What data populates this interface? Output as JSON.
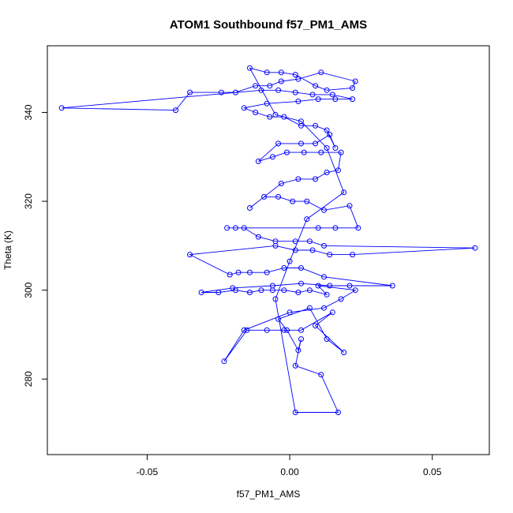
{
  "chart_data": {
    "type": "line",
    "title": "ATOM1 Southbound f57_PM1_AMS",
    "xlabel": "f57_PM1_AMS",
    "ylabel": "Theta (K)",
    "xlim": [
      -0.085,
      0.07
    ],
    "ylim": [
      263,
      355
    ],
    "xticks": [
      -0.05,
      0.0,
      0.05
    ],
    "xtick_labels": [
      "-0.05",
      "0.00",
      "0.05"
    ],
    "yticks": [
      280,
      300,
      320,
      340
    ],
    "ytick_labels": [
      "280",
      "300",
      "320",
      "340"
    ],
    "grid": false,
    "line_color": "#0000ff",
    "marker": "open-circle",
    "series": [
      {
        "name": "f57_PM1_AMS",
        "x": [
          0.002,
          0.017,
          0.011,
          0.002,
          0.004,
          0.003,
          -0.001,
          -0.004,
          0.007,
          0.013,
          0.019,
          0.009,
          0.015,
          0.004,
          -0.002,
          -0.008,
          -0.015,
          -0.023,
          -0.016,
          0.0,
          0.012,
          0.018,
          0.023,
          0.01,
          0.013,
          0.007,
          0.003,
          -0.002,
          -0.006,
          -0.01,
          -0.014,
          -0.019,
          -0.025,
          -0.031,
          -0.02,
          -0.006,
          0.004,
          0.014,
          0.021,
          0.036,
          0.012,
          0.004,
          -0.002,
          -0.008,
          -0.014,
          -0.018,
          -0.021,
          -0.035,
          -0.005,
          0.002,
          0.008,
          0.014,
          0.022,
          0.065,
          0.012,
          0.007,
          0.002,
          -0.005,
          -0.011,
          -0.016,
          -0.019,
          -0.022,
          0.01,
          0.016,
          0.024,
          0.021,
          0.012,
          0.006,
          0.001,
          -0.004,
          -0.009,
          -0.014,
          -0.003,
          0.003,
          0.009,
          0.013,
          0.017,
          0.018,
          0.011,
          0.005,
          -0.001,
          -0.006,
          -0.011,
          -0.004,
          0.004,
          0.009,
          0.014,
          0.016,
          0.013,
          0.009,
          0.004,
          -0.002,
          -0.007,
          -0.012,
          -0.016,
          -0.008,
          0.003,
          0.01,
          0.016,
          0.022,
          0.015,
          0.008,
          0.002,
          -0.004,
          -0.01,
          -0.08,
          -0.04,
          -0.035,
          -0.024,
          -0.019,
          -0.012,
          -0.007,
          -0.003,
          0.003,
          0.011,
          0.023,
          0.022,
          0.013,
          0.009,
          0.002,
          -0.003,
          -0.008,
          -0.014,
          -0.005,
          0.004,
          0.013,
          0.019,
          0.006,
          0.0,
          -0.005
        ],
        "y": [
          272.5,
          272.5,
          281.0,
          283.0,
          289.0,
          286.5,
          291.0,
          293.5,
          296.0,
          289.0,
          286.0,
          292.0,
          295.0,
          291.0,
          291.0,
          291.0,
          291.0,
          284.0,
          291.0,
          295.0,
          296.0,
          298.0,
          300.0,
          301.0,
          299.0,
          300.0,
          299.5,
          300.0,
          300.0,
          300.0,
          299.5,
          300.0,
          299.5,
          299.5,
          300.5,
          301.0,
          301.5,
          301.0,
          301.0,
          301.0,
          303.0,
          305.0,
          305.0,
          304.0,
          304.0,
          304.0,
          303.5,
          308.0,
          310.0,
          309.0,
          309.0,
          308.0,
          308.0,
          309.5,
          310.0,
          311.0,
          311.0,
          311.0,
          312.0,
          314.0,
          314.0,
          314.0,
          314.0,
          314.0,
          314.0,
          319.0,
          318.0,
          320.0,
          320.0,
          321.0,
          321.0,
          318.5,
          324.0,
          325.0,
          325.0,
          326.5,
          327.0,
          331.0,
          331.0,
          331.0,
          331.0,
          330.0,
          329.0,
          333.0,
          333.0,
          333.0,
          335.0,
          332.0,
          336.0,
          337.0,
          337.0,
          339.0,
          339.0,
          340.0,
          341.0,
          342.0,
          342.5,
          343.0,
          343.0,
          343.0,
          344.0,
          344.0,
          344.5,
          345.0,
          345.0,
          341.0,
          340.5,
          344.5,
          344.5,
          344.5,
          346.0,
          346.0,
          347.0,
          347.5,
          349.0,
          347.0,
          345.5,
          345.0,
          346.0,
          348.5,
          349.0,
          349.0,
          350.0,
          339.5,
          338.0,
          332.0,
          322.0,
          316.0,
          306.5,
          298.0
        ],
        "close_path": true
      }
    ]
  }
}
